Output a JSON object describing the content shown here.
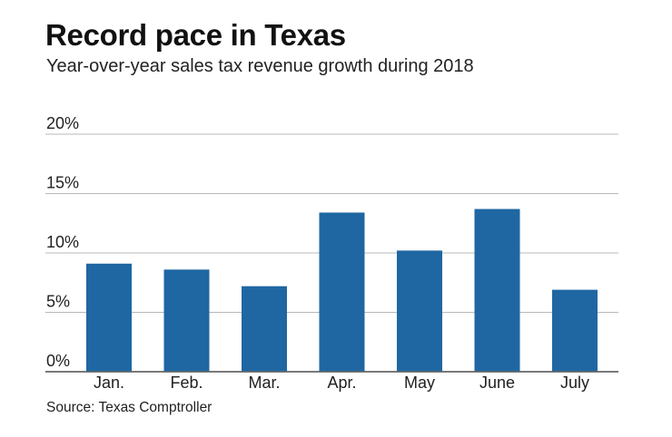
{
  "colors": {
    "bar": "#1f67a2",
    "grid": "#b8b8b8",
    "axis": "#666666"
  },
  "chart_data": {
    "type": "bar",
    "title": "Record pace in Texas",
    "subtitle": "Year-over-year sales tax revenue growth during 2018",
    "source": "Source: Texas Comptroller",
    "categories": [
      "Jan.",
      "Feb.",
      "Mar.",
      "Apr.",
      "May",
      "June",
      "July"
    ],
    "values": [
      9.1,
      8.6,
      7.2,
      13.4,
      10.2,
      13.7,
      6.9
    ],
    "yticks": [
      0,
      5,
      10,
      15,
      20
    ],
    "ytick_labels": [
      "0%",
      "5%",
      "10%",
      "15%",
      "20%"
    ],
    "ylim": [
      0,
      20
    ],
    "xlabel": "",
    "ylabel": "",
    "grid": true
  }
}
